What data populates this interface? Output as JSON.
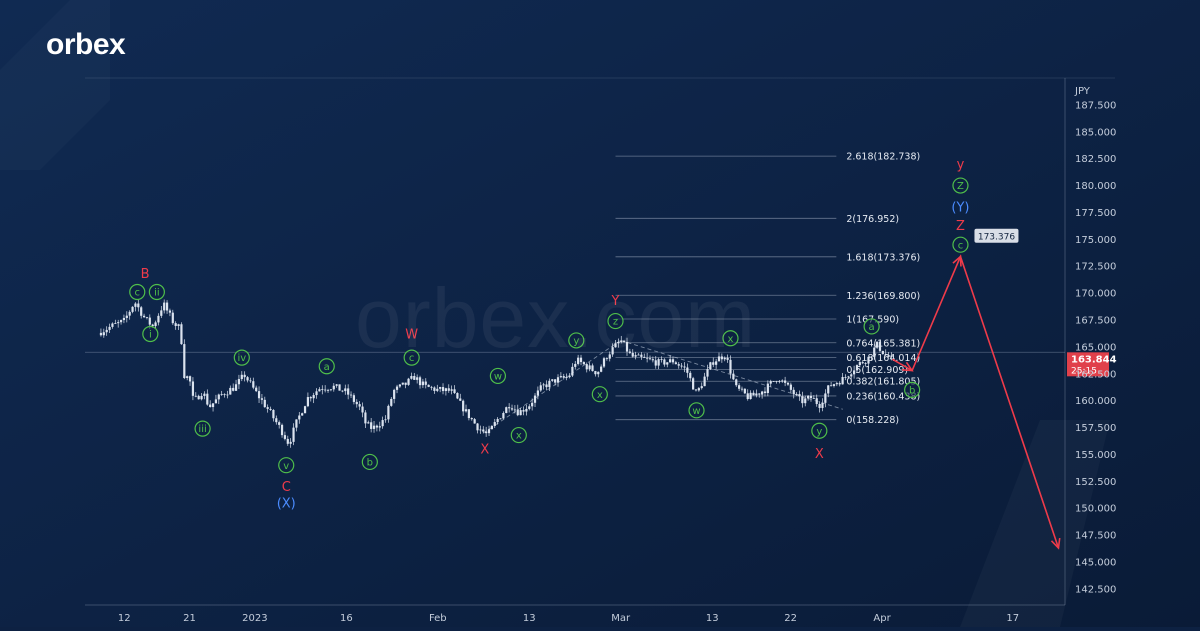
{
  "brand": {
    "logo_text": "orbex",
    "watermark_text": "orbex.com"
  },
  "colors": {
    "background": "#0d2142",
    "candle": "#dbe3ef",
    "wave_green": "#4fbf4a",
    "wave_red": "#ef3b4a",
    "wave_blue": "#4b8cff",
    "arrow_red": "#ef3b4a",
    "price_tag": "#e0404a",
    "axis_text": "#c4cddb"
  },
  "chart_data": {
    "type": "line",
    "title": "",
    "currency_label": "JPY",
    "ylim": [
      141,
      190
    ],
    "x_range": [
      -3,
      72
    ],
    "yticks": [
      142.5,
      145,
      147.5,
      150,
      152.5,
      155,
      157.5,
      160,
      162.5,
      165,
      167.5,
      170,
      172.5,
      175,
      177.5,
      180,
      182.5,
      185,
      187.5
    ],
    "ytick_labels": [
      "142.500",
      "145.000",
      "147.500",
      "150.000",
      "152.500",
      "155.000",
      "157.500",
      "160.000",
      "162.500",
      "165.000",
      "167.500",
      "170.000",
      "172.500",
      "175.000",
      "177.500",
      "180.000",
      "182.500",
      "185.000",
      "187.500"
    ],
    "xticks": [
      {
        "label": "12",
        "x": 0
      },
      {
        "label": "21",
        "x": 5
      },
      {
        "label": "2023",
        "x": 10
      },
      {
        "label": "16",
        "x": 17
      },
      {
        "label": "Feb",
        "x": 24
      },
      {
        "label": "13",
        "x": 31
      },
      {
        "label": "Mar",
        "x": 38
      },
      {
        "label": "13",
        "x": 45
      },
      {
        "label": "22",
        "x": 51
      },
      {
        "label": "Apr",
        "x": 58
      },
      {
        "label": "17",
        "x": 68
      }
    ],
    "current_price": {
      "price": "163.844",
      "countdown": "25:15",
      "value": 163.844
    },
    "price_series": [
      {
        "x": -2.0,
        "y": 166.3
      },
      {
        "x": -1.0,
        "y": 166.9
      },
      {
        "x": 0.0,
        "y": 167.4
      },
      {
        "x": 0.8,
        "y": 169.2
      },
      {
        "x": 1.6,
        "y": 167.6
      },
      {
        "x": 2.2,
        "y": 166.9
      },
      {
        "x": 3.0,
        "y": 169.0
      },
      {
        "x": 3.8,
        "y": 167.2
      },
      {
        "x": 4.3,
        "y": 166.7
      },
      {
        "x": 4.6,
        "y": 162.4
      },
      {
        "x": 5.0,
        "y": 162.0
      },
      {
        "x": 5.3,
        "y": 159.9
      },
      {
        "x": 6.0,
        "y": 160.9
      },
      {
        "x": 6.5,
        "y": 159.4
      },
      {
        "x": 7.5,
        "y": 160.6
      },
      {
        "x": 8.5,
        "y": 161.3
      },
      {
        "x": 9.2,
        "y": 162.4
      },
      {
        "x": 10.0,
        "y": 160.9
      },
      {
        "x": 11.0,
        "y": 159.2
      },
      {
        "x": 12.0,
        "y": 157.3
      },
      {
        "x": 12.6,
        "y": 156.0
      },
      {
        "x": 13.2,
        "y": 158.0
      },
      {
        "x": 14.0,
        "y": 160.2
      },
      {
        "x": 15.0,
        "y": 161.2
      },
      {
        "x": 16.0,
        "y": 161.3
      },
      {
        "x": 17.0,
        "y": 160.8
      },
      {
        "x": 18.0,
        "y": 159.4
      },
      {
        "x": 18.5,
        "y": 157.8
      },
      {
        "x": 19.0,
        "y": 157.4
      },
      {
        "x": 20.0,
        "y": 158.3
      },
      {
        "x": 20.6,
        "y": 160.9
      },
      {
        "x": 21.5,
        "y": 161.5
      },
      {
        "x": 22.2,
        "y": 162.2
      },
      {
        "x": 23.0,
        "y": 161.3
      },
      {
        "x": 24.0,
        "y": 161.0
      },
      {
        "x": 25.0,
        "y": 160.9
      },
      {
        "x": 26.0,
        "y": 159.2
      },
      {
        "x": 27.0,
        "y": 157.6
      },
      {
        "x": 27.8,
        "y": 156.8
      },
      {
        "x": 28.6,
        "y": 158.3
      },
      {
        "x": 29.5,
        "y": 159.7
      },
      {
        "x": 30.2,
        "y": 158.9
      },
      {
        "x": 31.0,
        "y": 159.6
      },
      {
        "x": 32.0,
        "y": 161.3
      },
      {
        "x": 33.0,
        "y": 161.9
      },
      {
        "x": 34.0,
        "y": 162.2
      },
      {
        "x": 34.6,
        "y": 163.8
      },
      {
        "x": 35.5,
        "y": 163.1
      },
      {
        "x": 36.2,
        "y": 162.6
      },
      {
        "x": 37.0,
        "y": 164.3
      },
      {
        "x": 38.0,
        "y": 165.6
      },
      {
        "x": 38.8,
        "y": 164.1
      },
      {
        "x": 40.0,
        "y": 163.8
      },
      {
        "x": 41.0,
        "y": 163.5
      },
      {
        "x": 42.0,
        "y": 163.7
      },
      {
        "x": 43.0,
        "y": 162.9
      },
      {
        "x": 43.8,
        "y": 160.6
      },
      {
        "x": 45.0,
        "y": 163.6
      },
      {
        "x": 46.0,
        "y": 164.3
      },
      {
        "x": 46.8,
        "y": 161.2
      },
      {
        "x": 47.8,
        "y": 160.3
      },
      {
        "x": 49.0,
        "y": 161.0
      },
      {
        "x": 50.0,
        "y": 162.2
      },
      {
        "x": 51.0,
        "y": 161.0
      },
      {
        "x": 51.8,
        "y": 159.9
      },
      {
        "x": 52.6,
        "y": 160.3
      },
      {
        "x": 53.2,
        "y": 159.6
      },
      {
        "x": 54.0,
        "y": 161.4
      },
      {
        "x": 55.0,
        "y": 162.0
      },
      {
        "x": 56.0,
        "y": 163.2
      },
      {
        "x": 57.0,
        "y": 164.0
      },
      {
        "x": 57.6,
        "y": 165.2
      },
      {
        "x": 58.3,
        "y": 164.2
      },
      {
        "x": 58.8,
        "y": 163.844
      }
    ],
    "projection_path": [
      {
        "x": 58.8,
        "y": 163.844
      },
      {
        "x": 60.3,
        "y": 162.8
      },
      {
        "x": 64.0,
        "y": 173.4
      },
      {
        "x": 71.5,
        "y": 146.3
      }
    ],
    "fib_levels": [
      {
        "label": "2.618(182.738)",
        "value": 182.738,
        "style": "solid"
      },
      {
        "label": "2(176.952)",
        "value": 176.952,
        "style": "solid"
      },
      {
        "label": "1.618(173.376)",
        "value": 173.376,
        "style": "solid"
      },
      {
        "label": "1.236(169.800)",
        "value": 169.8,
        "style": "solid"
      },
      {
        "label": "1(167.590)",
        "value": 167.59,
        "style": "solid"
      },
      {
        "label": "0.764(165.381)",
        "value": 165.381,
        "style": "solid"
      },
      {
        "label": "0.618(164.014)",
        "value": 164.014,
        "style": "solid"
      },
      {
        "label": "0.5(162.909)",
        "value": 162.909,
        "style": "solid"
      },
      {
        "label": "0.382(161.805)",
        "value": 161.805,
        "style": "solid"
      },
      {
        "label": "0.236(160.438)",
        "value": 160.438,
        "style": "solid"
      },
      {
        "label": "0(158.228)",
        "value": 158.228,
        "style": "solid"
      }
    ],
    "target_tag": {
      "text": "173.376",
      "x": 64.0,
      "y": 173.376
    },
    "reference_line": {
      "y": 164.5
    },
    "trend_lines": [
      {
        "x1": 27.5,
        "y1": 157.0,
        "x2": 38.0,
        "y2": 165.6
      },
      {
        "x1": 38.0,
        "y1": 165.6,
        "x2": 55.0,
        "y2": 159.2
      }
    ],
    "wave_labels": [
      {
        "text": "B",
        "x": 1.6,
        "y": 171.8,
        "color": "red",
        "circled": false
      },
      {
        "text": "c",
        "x": 1.0,
        "y": 170.1,
        "color": "green",
        "circled": true
      },
      {
        "text": "ii",
        "x": 2.5,
        "y": 170.1,
        "color": "green",
        "circled": true
      },
      {
        "text": "i",
        "x": 2.0,
        "y": 166.2,
        "color": "green",
        "circled": true
      },
      {
        "text": "iii",
        "x": 6.0,
        "y": 157.4,
        "color": "green",
        "circled": true
      },
      {
        "text": "iv",
        "x": 9.0,
        "y": 164.0,
        "color": "green",
        "circled": true
      },
      {
        "text": "v",
        "x": 12.4,
        "y": 154.0,
        "color": "green",
        "circled": true
      },
      {
        "text": "C",
        "x": 12.4,
        "y": 152.0,
        "color": "red",
        "circled": false
      },
      {
        "text": "(X)",
        "x": 12.4,
        "y": 150.5,
        "color": "blue",
        "circled": false
      },
      {
        "text": "a",
        "x": 15.5,
        "y": 163.2,
        "color": "green",
        "circled": true
      },
      {
        "text": "b",
        "x": 18.8,
        "y": 154.3,
        "color": "green",
        "circled": true
      },
      {
        "text": "W",
        "x": 22.0,
        "y": 166.2,
        "color": "red",
        "circled": false
      },
      {
        "text": "c",
        "x": 22.0,
        "y": 164.0,
        "color": "green",
        "circled": true
      },
      {
        "text": "w",
        "x": 28.6,
        "y": 162.3,
        "color": "green",
        "circled": true
      },
      {
        "text": "X",
        "x": 27.6,
        "y": 155.5,
        "color": "red",
        "circled": false
      },
      {
        "text": "x",
        "x": 30.2,
        "y": 156.8,
        "color": "green",
        "circled": true
      },
      {
        "text": "y",
        "x": 34.6,
        "y": 165.6,
        "color": "green",
        "circled": true
      },
      {
        "text": "x",
        "x": 36.4,
        "y": 160.6,
        "color": "green",
        "circled": true
      },
      {
        "text": "Y",
        "x": 37.6,
        "y": 169.3,
        "color": "red",
        "circled": false
      },
      {
        "text": "z",
        "x": 37.6,
        "y": 167.4,
        "color": "green",
        "circled": true
      },
      {
        "text": "w",
        "x": 43.8,
        "y": 159.1,
        "color": "green",
        "circled": true
      },
      {
        "text": "x",
        "x": 46.4,
        "y": 165.8,
        "color": "green",
        "circled": true
      },
      {
        "text": "y",
        "x": 53.2,
        "y": 157.2,
        "color": "green",
        "circled": true
      },
      {
        "text": "X",
        "x": 53.2,
        "y": 155.1,
        "color": "red",
        "circled": false
      },
      {
        "text": "a",
        "x": 57.2,
        "y": 166.9,
        "color": "green",
        "circled": true
      },
      {
        "text": "b",
        "x": 60.3,
        "y": 161.0,
        "color": "green",
        "circled": true
      },
      {
        "text": "y",
        "x": 64.0,
        "y": 182.0,
        "color": "red",
        "circled": false
      },
      {
        "text": "Z",
        "x": 64.0,
        "y": 180.0,
        "color": "green",
        "circled": true
      },
      {
        "text": "(Y)",
        "x": 64.0,
        "y": 178.0,
        "color": "blue",
        "circled": false
      },
      {
        "text": "Z",
        "x": 64.0,
        "y": 176.3,
        "color": "red",
        "circled": false
      },
      {
        "text": "c",
        "x": 64.0,
        "y": 174.5,
        "color": "green",
        "circled": true
      }
    ]
  }
}
